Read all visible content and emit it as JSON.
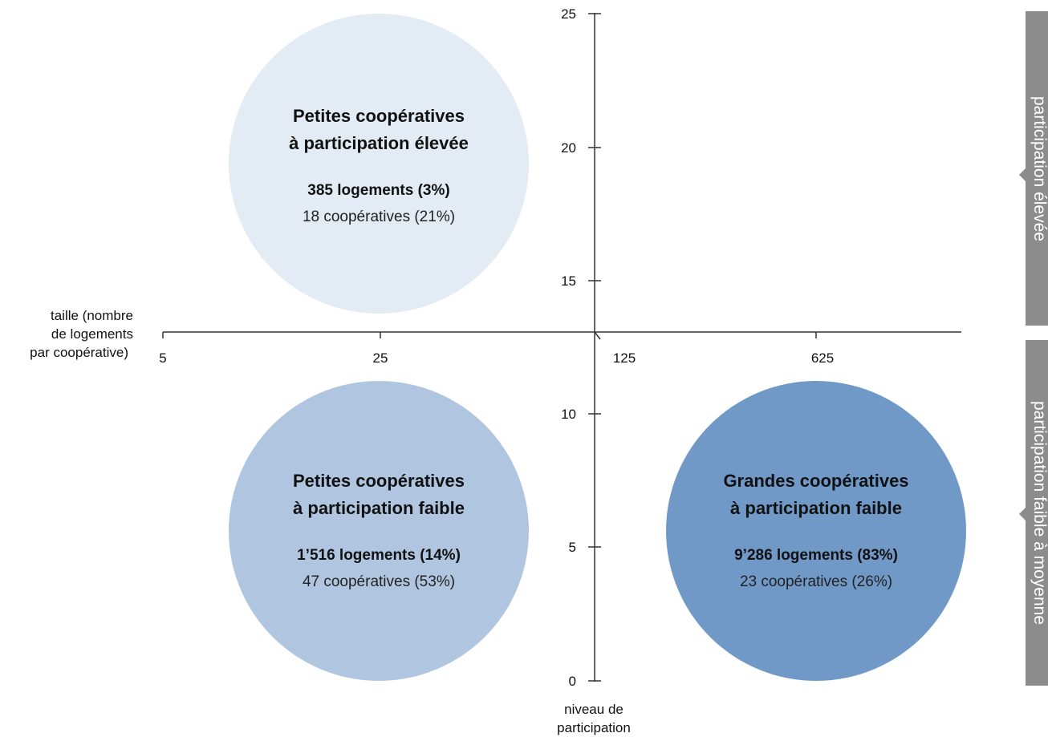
{
  "axes": {
    "x_title": [
      "taille (nombre",
      "de logements",
      "par coopérative)"
    ],
    "x_ticks": [
      "5",
      "25",
      "125",
      "625"
    ],
    "y_title": [
      "niveau de",
      "participation"
    ],
    "y_ticks": [
      "25",
      "20",
      "15",
      "10",
      "5",
      "0"
    ]
  },
  "bubbles": [
    {
      "title": [
        "Petites coopératives",
        "à participation élevée"
      ],
      "logements": "385 logements (3%)",
      "cooperatives": "18 coopératives (21%)",
      "color": "#e3ebf4"
    },
    {
      "title": [
        "Petites coopératives",
        "à participation faible"
      ],
      "logements": "1’516 logements (14%)",
      "cooperatives": "47 coopératives (53%)",
      "color": "#b0c6e0"
    },
    {
      "title": [
        "Grandes coopératives",
        "à participation faible"
      ],
      "logements": "9’286 logements (83%)",
      "cooperatives": "23 coopératives (26%)",
      "color": "#7099c8"
    }
  ],
  "side_tabs": {
    "high": "participation élevée",
    "low": "participation faible à moyenne"
  }
}
